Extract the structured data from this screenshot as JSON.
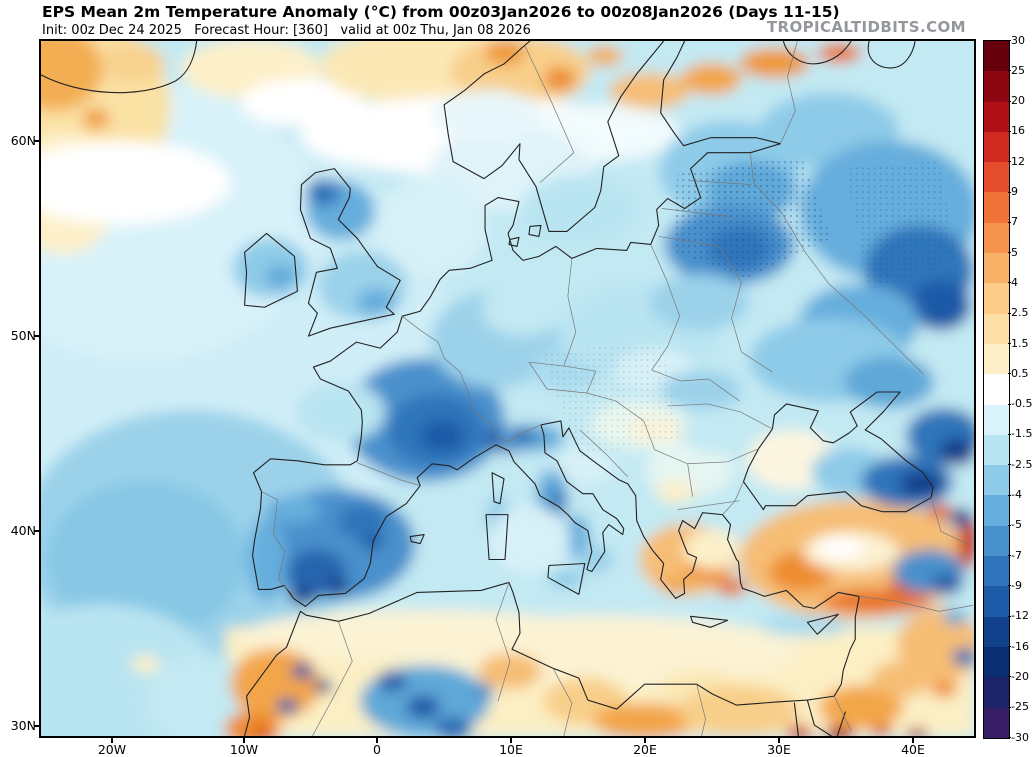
{
  "header": {
    "title": "EPS Mean 2m Temperature Anomaly (°C) from 00z03Jan2026 to 00z08Jan2026 (Days 11-15)",
    "subtitle": "Init: 00z Dec 24 2025   Forecast Hour: [360]   valid at 00z Thu, Jan 08 2026",
    "brand": "TROPICALTIDBITS.COM"
  },
  "axes": {
    "lat": [
      "60N",
      "50N",
      "40N",
      "30N"
    ],
    "lon": [
      "20W",
      "10W",
      "0",
      "10E",
      "20E",
      "30E",
      "40E"
    ]
  },
  "colorbar": {
    "unit": "°C",
    "labels_top_to_bottom": [
      "30",
      "25",
      "20",
      "16",
      "12",
      "9",
      "7",
      "5",
      "4",
      "2.5",
      "1.5",
      "0.5",
      "-0.5",
      "-1.5",
      "-2.5",
      "-4",
      "-5",
      "-7",
      "-9",
      "-12",
      "-16",
      "-20",
      "-25",
      "-30"
    ],
    "colors_top_to_bottom": [
      "#67000d",
      "#8c0712",
      "#b01117",
      "#d02a20",
      "#e54e2d",
      "#ef7238",
      "#f5944c",
      "#f8b267",
      "#fbcb87",
      "#fcdfa7",
      "#fdf0c8",
      "#ffffff",
      "#daf2f9",
      "#b9e4f1",
      "#8ecbe8",
      "#66aedd",
      "#4890cc",
      "#2f74ba",
      "#1d5aa8",
      "#12418c",
      "#0b2e72",
      "#1c2368",
      "#371d63"
    ]
  }
}
